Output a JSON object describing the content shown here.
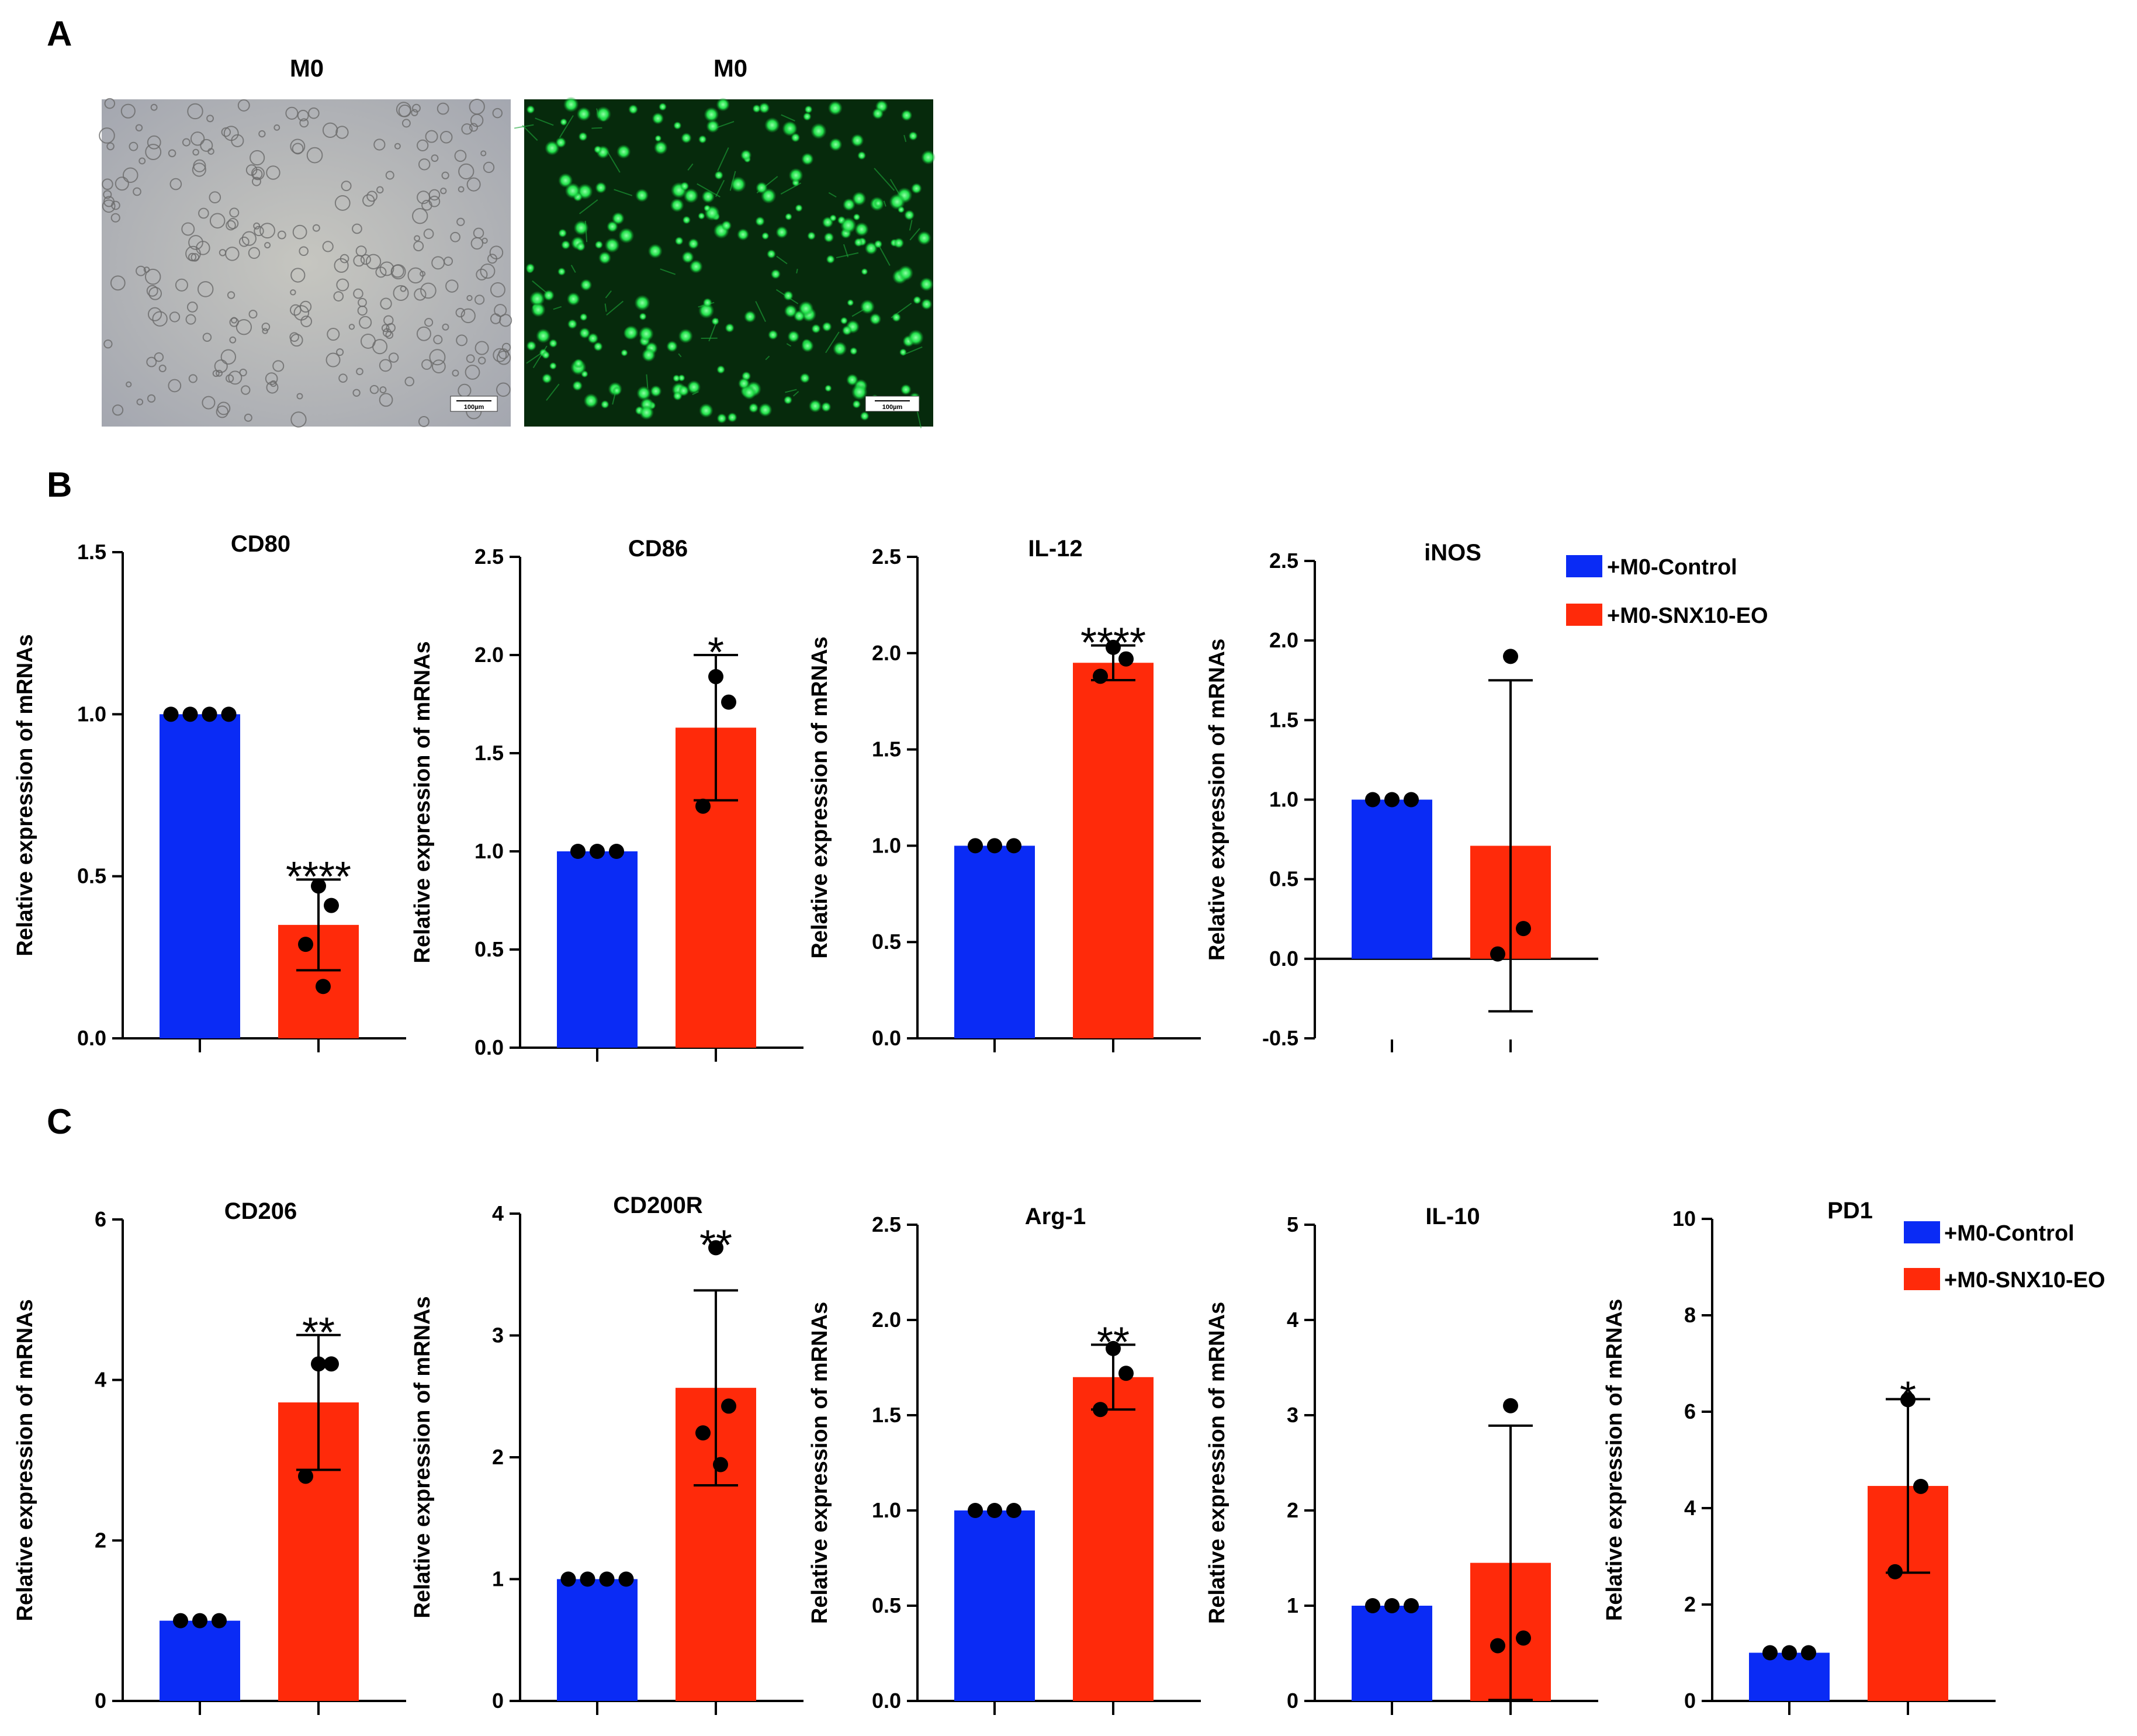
{
  "panels": {
    "a": "A",
    "b": "B",
    "c": "C"
  },
  "micrographs": [
    {
      "title": "M0",
      "channel": "brightfield",
      "scale_bar": "100µm"
    },
    {
      "title": "M0",
      "channel": "fluorescence",
      "scale_bar": "100µm"
    }
  ],
  "legend": [
    {
      "label": "+M0-Control",
      "color": "#0a2bf5"
    },
    {
      "label": "+M0-SNX10-EO",
      "color": "#ff2a0a"
    }
  ],
  "chart_data": [
    {
      "type": "bar",
      "title": "CD80",
      "ylabel": "Relative expression of mRNAs",
      "ylim": [
        0,
        1.5
      ],
      "ticks": [
        "0.0",
        "0.5",
        "1.0",
        "1.5"
      ],
      "categories": [
        "+M0-Control",
        "+M0-SNX10-EO"
      ],
      "values": [
        1.0,
        0.35
      ],
      "error": [
        0,
        0.14
      ],
      "points": [
        [
          1,
          1,
          1,
          1
        ],
        [
          0.47,
          0.41,
          0.29,
          0.16
        ]
      ],
      "significance": "****"
    },
    {
      "type": "bar",
      "title": "CD86",
      "ylabel": "Relative expression of mRNAs",
      "ylim": [
        0,
        2.5
      ],
      "ticks": [
        "0.0",
        "0.5",
        "1.0",
        "1.5",
        "2.0",
        "2.5"
      ],
      "categories": [
        "+M0-Control",
        "+M0-SNX10-EO"
      ],
      "values": [
        1.0,
        1.63
      ],
      "error": [
        0,
        0.37
      ],
      "points": [
        [
          1,
          1,
          1
        ],
        [
          1.89,
          1.76,
          1.23
        ]
      ],
      "significance": "*"
    },
    {
      "type": "bar",
      "title": "IL-12",
      "ylabel": "Relative expression of mRNAs",
      "ylim": [
        0,
        2.5
      ],
      "ticks": [
        "0.0",
        "0.5",
        "1.0",
        "1.5",
        "2.0",
        "2.5"
      ],
      "categories": [
        "+M0-Control",
        "+M0-SNX10-EO"
      ],
      "values": [
        1.0,
        1.95
      ],
      "error": [
        0,
        0.09
      ],
      "points": [
        [
          1,
          1,
          1
        ],
        [
          2.03,
          1.97,
          1.88
        ]
      ],
      "significance": "****"
    },
    {
      "type": "bar",
      "title": "iNOS",
      "ylabel": "Relative expression of mRNAs",
      "ylim": [
        -0.5,
        2.5
      ],
      "ticks": [
        "-0.5",
        "0.0",
        "0.5",
        "1.0",
        "1.5",
        "2.0",
        "2.5"
      ],
      "categories": [
        "+M0-Control",
        "+M0-SNX10-EO"
      ],
      "values": [
        1.0,
        0.71
      ],
      "error": [
        0,
        1.04
      ],
      "points": [
        [
          1,
          1,
          1
        ],
        [
          1.9,
          0.19,
          0.03
        ]
      ],
      "significance": ""
    },
    {
      "type": "bar",
      "title": "CD206",
      "ylabel": "Relative expression of mRNAs",
      "ylim": [
        0,
        6
      ],
      "ticks": [
        "0",
        "2",
        "4",
        "6"
      ],
      "categories": [
        "+M0-Control",
        "+M0-SNX10-EO"
      ],
      "values": [
        1.0,
        3.72
      ],
      "error": [
        0,
        0.84
      ],
      "points": [
        [
          1,
          1,
          1
        ],
        [
          4.2,
          4.2,
          2.8
        ]
      ],
      "significance": "**"
    },
    {
      "type": "bar",
      "title": "CD200R",
      "ylabel": "Relative expression of mRNAs",
      "ylim": [
        0,
        4
      ],
      "ticks": [
        "0",
        "1",
        "2",
        "3",
        "4"
      ],
      "categories": [
        "+M0-Control",
        "+M0-SNX10-EO"
      ],
      "values": [
        1.0,
        2.57
      ],
      "error": [
        0,
        0.8
      ],
      "points": [
        [
          1,
          1,
          1,
          1
        ],
        [
          3.72,
          2.42,
          2.2,
          1.94
        ]
      ],
      "significance": "**"
    },
    {
      "type": "bar",
      "title": "Arg-1",
      "ylabel": "Relative expression of mRNAs",
      "ylim": [
        0,
        2.5
      ],
      "ticks": [
        "0.0",
        "0.5",
        "1.0",
        "1.5",
        "2.0",
        "2.5"
      ],
      "categories": [
        "+M0-Control",
        "+M0-SNX10-EO"
      ],
      "values": [
        1.0,
        1.7
      ],
      "error": [
        0,
        0.17
      ],
      "points": [
        [
          1,
          1,
          1
        ],
        [
          1.85,
          1.72,
          1.53
        ]
      ],
      "significance": "**"
    },
    {
      "type": "bar",
      "title": "IL-10",
      "ylabel": "Relative expression of mRNAs",
      "ylim": [
        0,
        5
      ],
      "ticks": [
        "0",
        "1",
        "2",
        "3",
        "4",
        "5"
      ],
      "categories": [
        "+M0-Control",
        "+M0-SNX10-EO"
      ],
      "values": [
        1.0,
        1.45
      ],
      "error": [
        0,
        1.44
      ],
      "points": [
        [
          1,
          1,
          1
        ],
        [
          3.1,
          0.66,
          0.58
        ]
      ],
      "significance": ""
    },
    {
      "type": "bar",
      "title": "PD1",
      "ylabel": "Relative expression of mRNAs",
      "ylim": [
        0,
        10
      ],
      "ticks": [
        "0",
        "2",
        "4",
        "6",
        "8",
        "10"
      ],
      "categories": [
        "+M0-Control",
        "+M0-SNX10-EO"
      ],
      "values": [
        1.0,
        4.46
      ],
      "error": [
        0,
        1.8
      ],
      "points": [
        [
          1,
          1,
          1
        ],
        [
          6.25,
          4.45,
          2.68
        ]
      ],
      "significance": "*"
    }
  ]
}
